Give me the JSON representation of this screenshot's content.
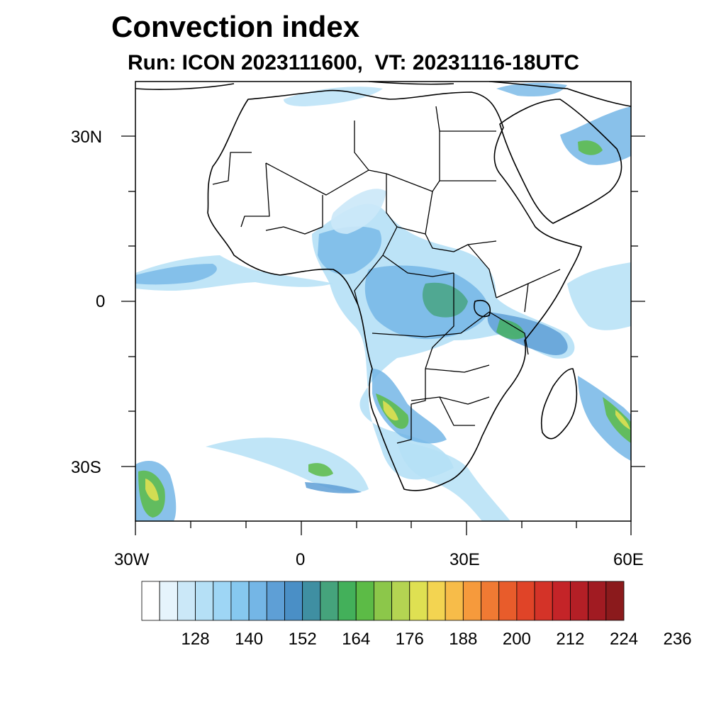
{
  "title": "Convection index",
  "subtitle": "Run: ICON 2023111600,  VT: 20231116-18UTC",
  "axes": {
    "lat_labels": [
      "30N",
      "0",
      "30S"
    ],
    "lon_labels": [
      "30W",
      "0",
      "30E",
      "60E"
    ]
  },
  "colorbar": {
    "labels": [
      "128",
      "140",
      "152",
      "164",
      "176",
      "188",
      "200",
      "212",
      "224",
      "236"
    ],
    "colors": [
      "#ffffff",
      "#e6f4fc",
      "#cbe8f8",
      "#b5e0f6",
      "#9ed6f5",
      "#86c8ef",
      "#74b6e6",
      "#5e9fd6",
      "#4a8fc6",
      "#3f8fa2",
      "#45a37c",
      "#43b05a",
      "#5cbb46",
      "#8cc74a",
      "#b4d452",
      "#dfe052",
      "#f3d451",
      "#f7bc49",
      "#f69a3c",
      "#f07a33",
      "#e85c2b",
      "#e04428",
      "#d43328",
      "#c42428",
      "#b41f26",
      "#a11b22",
      "#8b1a1c"
    ]
  },
  "chart_data": {
    "type": "heatmap",
    "title": "Convection index",
    "subtitle": "Run: ICON 2023111600,  VT: 20231116-18UTC",
    "lon_range": [
      -30,
      60
    ],
    "lat_range": [
      -40,
      40
    ],
    "xticks": [
      -30,
      0,
      30,
      60
    ],
    "yticks": [
      30,
      0,
      -30
    ],
    "colorbar_levels": [
      128,
      140,
      152,
      164,
      176,
      188,
      200,
      212,
      224,
      236
    ]
  }
}
